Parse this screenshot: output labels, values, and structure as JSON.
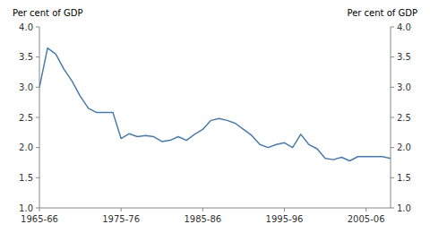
{
  "chart_data": {
    "type": "line",
    "y_label": "Per cent of GDP",
    "y2_label": "Per cent of GDP",
    "x": [
      1965,
      1966,
      1967,
      1968,
      1969,
      1970,
      1971,
      1972,
      1973,
      1974,
      1975,
      1976,
      1977,
      1978,
      1979,
      1980,
      1981,
      1982,
      1983,
      1984,
      1985,
      1986,
      1987,
      1988,
      1989,
      1990,
      1991,
      1992,
      1993,
      1994,
      1995,
      1996,
      1997,
      1998,
      1999,
      2000,
      2001,
      2002,
      2003,
      2004,
      2005,
      2006,
      2007,
      2008
    ],
    "values": [
      3.0,
      3.65,
      3.55,
      3.3,
      3.1,
      2.85,
      2.65,
      2.58,
      2.58,
      2.58,
      2.15,
      2.23,
      2.18,
      2.2,
      2.18,
      2.1,
      2.12,
      2.18,
      2.12,
      2.22,
      2.3,
      2.45,
      2.48,
      2.45,
      2.4,
      2.3,
      2.2,
      2.05,
      2.0,
      2.05,
      2.08,
      2.0,
      2.22,
      2.05,
      1.98,
      1.82,
      1.8,
      1.84,
      1.78,
      1.85,
      1.85,
      1.85,
      1.85,
      1.82
    ],
    "color": "#4a7aaa",
    "xlim": [
      1965,
      2008
    ],
    "xticks": [
      {
        "value": 1965,
        "label": "1965-66"
      },
      {
        "value": 1975,
        "label": "1975-76"
      },
      {
        "value": 1985,
        "label": "1985-86"
      },
      {
        "value": 1995,
        "label": "1995-96"
      },
      {
        "value": 2005,
        "label": "2005-06"
      }
    ],
    "ylim": [
      1.0,
      4.0
    ],
    "yticks": [
      {
        "value": 1,
        "label": "1.0"
      },
      1.5,
      {
        "value": 2,
        "label": "2.0"
      },
      2.5,
      {
        "value": 3,
        "label": "3.0"
      },
      3.5,
      {
        "value": 4,
        "label": "4.0"
      }
    ],
    "y2lim": [
      1.0,
      4.0
    ],
    "y2ticks": [
      {
        "value": 1,
        "label": "1.0"
      },
      1.5,
      {
        "value": 2,
        "label": "2.0"
      },
      2.5,
      {
        "value": 3,
        "label": "3.0"
      },
      3.5,
      {
        "value": 4,
        "label": "4.0"
      }
    ],
    "grid": false
  }
}
